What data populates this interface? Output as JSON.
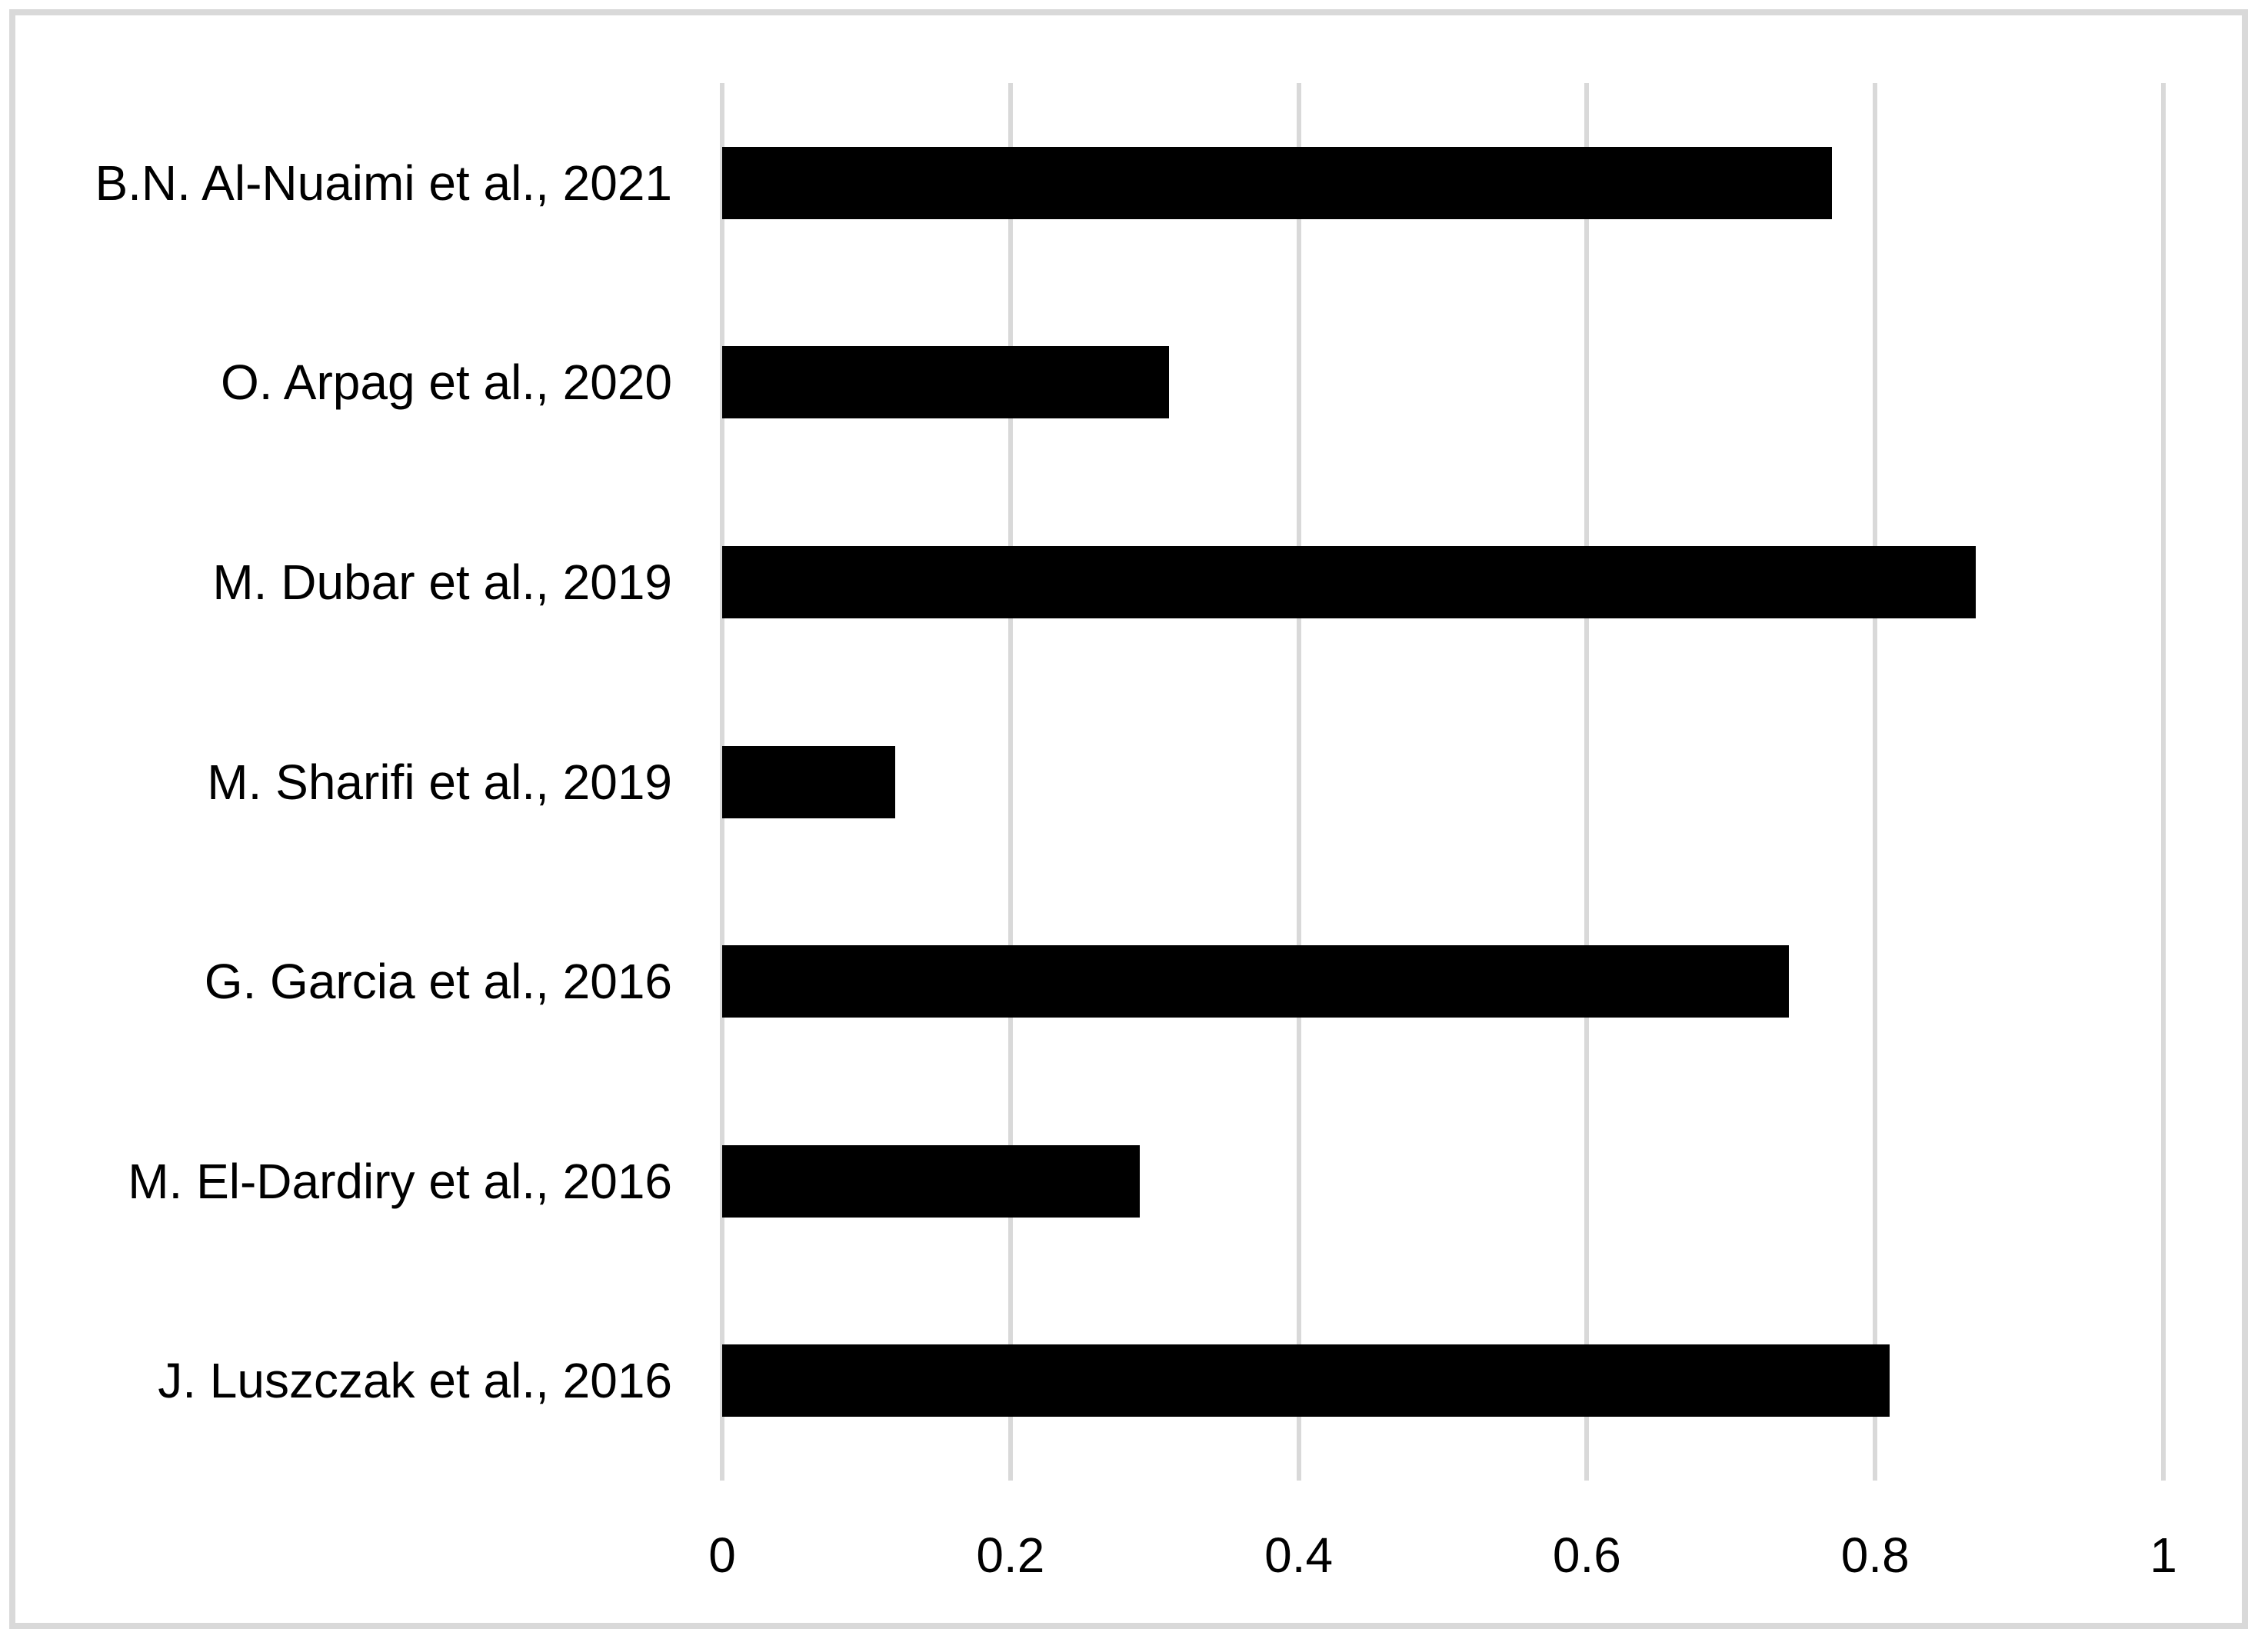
{
  "chart_data": {
    "type": "bar",
    "orientation": "horizontal",
    "title": "",
    "xlabel": "",
    "ylabel": "",
    "categories": [
      "B.N. Al-Nuaimi et al., 2021",
      "O. Arpag et al., 2020",
      "M. Dubar et al., 2019",
      "M. Sharifi et al., 2019",
      "G. Garcia et al., 2016",
      "M. El-Dardiry et al., 2016",
      "J. Luszczak et al., 2016"
    ],
    "values": [
      0.77,
      0.31,
      0.87,
      0.12,
      0.74,
      0.29,
      0.81
    ],
    "xlim": [
      0,
      1
    ],
    "x_ticks": [
      {
        "label": "0",
        "value": 0
      },
      {
        "label": "0.2",
        "value": 0.2
      },
      {
        "label": "0.4",
        "value": 0.4
      },
      {
        "label": "0.6",
        "value": 0.6
      },
      {
        "label": "0.8",
        "value": 0.8
      },
      {
        "label": "1",
        "value": 1
      }
    ],
    "grid": true,
    "legend": false,
    "colors": {
      "bar": "#000000",
      "gridline": "#d9d9d9",
      "border": "#d9d9d9",
      "background": "#ffffff",
      "text": "#000000"
    }
  }
}
